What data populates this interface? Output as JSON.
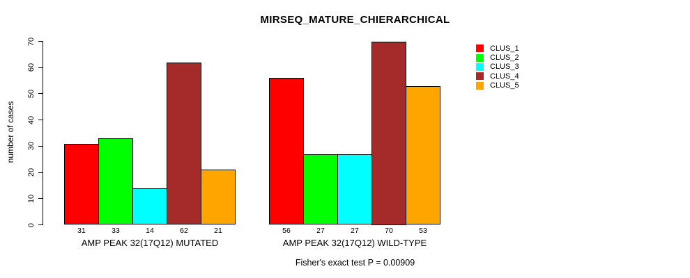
{
  "chart_data": {
    "type": "bar",
    "title": "MIRSEQ_MATURE_CHIERARCHICAL",
    "ylabel": "number of cases",
    "xlabel": "",
    "ylim": [
      0,
      70
    ],
    "yticks": [
      0,
      10,
      20,
      30,
      40,
      50,
      60,
      70
    ],
    "grid": false,
    "legend_position": "top-right",
    "bar_border_color": "#000000",
    "categories": [
      "AMP PEAK 32(17Q12) MUTATED",
      "AMP PEAK 32(17Q12) WILD-TYPE"
    ],
    "series": [
      {
        "name": "CLUS_1",
        "color": "#FF0000",
        "values": [
          31,
          56
        ]
      },
      {
        "name": "CLUS_2",
        "color": "#00FF00",
        "values": [
          33,
          27
        ]
      },
      {
        "name": "CLUS_3",
        "color": "#00FFFF",
        "values": [
          14,
          27
        ]
      },
      {
        "name": "CLUS_4",
        "color": "#A52A2A",
        "values": [
          62,
          70
        ]
      },
      {
        "name": "CLUS_5",
        "color": "#FFA500",
        "values": [
          21,
          53
        ]
      }
    ],
    "bar_value_labels": [
      [
        31,
        33,
        14,
        62,
        21
      ],
      [
        56,
        27,
        27,
        70,
        53
      ]
    ],
    "annotation": "Fisher's exact test P = 0.00909"
  }
}
